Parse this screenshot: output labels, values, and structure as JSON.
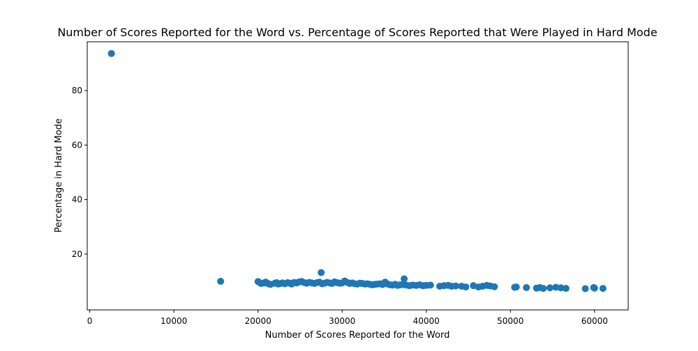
{
  "chart_data": {
    "type": "scatter",
    "title": "Number of Scores Reported for the Word vs. Percentage of Scores Reported that Were Played in Hard Mode",
    "xlabel": "Number of Scores Reported for the Word",
    "ylabel": "Percentage in Hard Mode",
    "xlim": [
      -300,
      64000
    ],
    "ylim": [
      -0.5,
      97.9
    ],
    "xticks": [
      0,
      10000,
      20000,
      30000,
      40000,
      50000,
      60000
    ],
    "yticks": [
      20,
      40,
      60,
      80
    ],
    "grid": false,
    "legend": "none",
    "marker_color": "#1f77b4",
    "points": [
      [
        2569,
        93.6
      ],
      [
        15554,
        10.0
      ],
      [
        27502,
        13.2
      ],
      [
        37371,
        10.9
      ],
      [
        20001,
        9.9
      ],
      [
        20150,
        9.6
      ],
      [
        20380,
        9.2
      ],
      [
        20700,
        9.4
      ],
      [
        20900,
        9.7
      ],
      [
        21100,
        9.3
      ],
      [
        21300,
        9.0
      ],
      [
        21500,
        8.9
      ],
      [
        22000,
        9.3
      ],
      [
        22200,
        9.5
      ],
      [
        22400,
        9.0
      ],
      [
        22700,
        9.2
      ],
      [
        22900,
        9.4
      ],
      [
        23200,
        9.1
      ],
      [
        23500,
        9.5
      ],
      [
        23800,
        9.3
      ],
      [
        24000,
        9.0
      ],
      [
        24300,
        9.6
      ],
      [
        24600,
        9.4
      ],
      [
        24900,
        9.8
      ],
      [
        25200,
        9.9
      ],
      [
        25500,
        9.5
      ],
      [
        25800,
        9.3
      ],
      [
        26100,
        9.6
      ],
      [
        26400,
        9.4
      ],
      [
        26700,
        9.2
      ],
      [
        27000,
        9.5
      ],
      [
        27300,
        9.7
      ],
      [
        27600,
        9.1
      ],
      [
        27900,
        9.3
      ],
      [
        28200,
        9.6
      ],
      [
        28500,
        9.4
      ],
      [
        28800,
        9.2
      ],
      [
        29100,
        9.8
      ],
      [
        29400,
        9.5
      ],
      [
        29700,
        9.3
      ],
      [
        30000,
        9.4
      ],
      [
        30300,
        10.1
      ],
      [
        30600,
        9.6
      ],
      [
        30900,
        9.2
      ],
      [
        31200,
        9.4
      ],
      [
        31500,
        9.1
      ],
      [
        31800,
        9.0
      ],
      [
        32100,
        9.3
      ],
      [
        32400,
        9.2
      ],
      [
        32700,
        9.0
      ],
      [
        33000,
        9.1
      ],
      [
        33300,
        8.9
      ],
      [
        33600,
        8.7
      ],
      [
        33900,
        8.9
      ],
      [
        34200,
        9.0
      ],
      [
        34500,
        9.1
      ],
      [
        34800,
        8.8
      ],
      [
        35100,
        9.7
      ],
      [
        35400,
        9.0
      ],
      [
        35700,
        8.7
      ],
      [
        36000,
        8.6
      ],
      [
        36300,
        8.9
      ],
      [
        36600,
        8.5
      ],
      [
        36900,
        8.7
      ],
      [
        37200,
        8.8
      ],
      [
        37600,
        8.6
      ],
      [
        38000,
        8.4
      ],
      [
        38400,
        8.6
      ],
      [
        38800,
        8.5
      ],
      [
        39200,
        8.7
      ],
      [
        39600,
        8.4
      ],
      [
        40000,
        8.5
      ],
      [
        40500,
        8.6
      ],
      [
        41600,
        8.2
      ],
      [
        42100,
        8.4
      ],
      [
        42600,
        8.5
      ],
      [
        43000,
        8.2
      ],
      [
        43500,
        8.3
      ],
      [
        44200,
        8.2
      ],
      [
        44700,
        7.9
      ],
      [
        45600,
        8.4
      ],
      [
        46200,
        7.9
      ],
      [
        46700,
        8.2
      ],
      [
        47200,
        8.5
      ],
      [
        47600,
        8.3
      ],
      [
        48100,
        8.0
      ],
      [
        50500,
        7.8
      ],
      [
        50700,
        7.9
      ],
      [
        51900,
        7.7
      ],
      [
        53100,
        7.5
      ],
      [
        53500,
        7.7
      ],
      [
        53900,
        7.4
      ],
      [
        54700,
        7.6
      ],
      [
        55400,
        7.8
      ],
      [
        56000,
        7.6
      ],
      [
        56600,
        7.4
      ],
      [
        58900,
        7.3
      ],
      [
        59900,
        7.7
      ],
      [
        60000,
        7.5
      ],
      [
        61000,
        7.4
      ]
    ]
  }
}
